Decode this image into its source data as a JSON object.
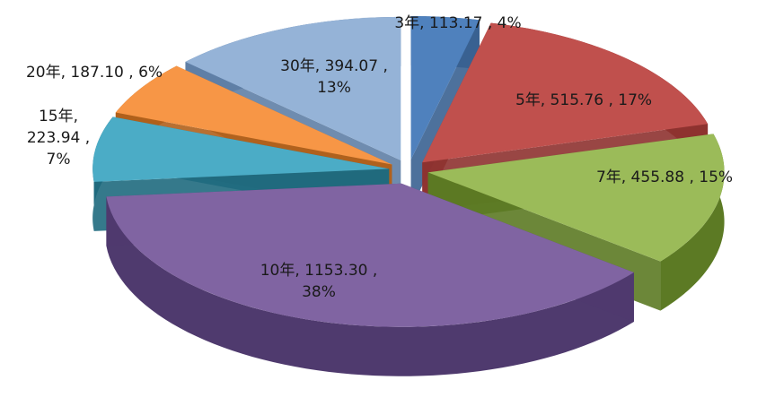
{
  "chart_data": {
    "type": "pie",
    "style": "3d-exploded",
    "start_angle_deg": -90,
    "direction": "clockwise",
    "slices": [
      {
        "label": "3年",
        "value": 113.17,
        "percent": "4%",
        "color": "#4F81BD",
        "side": "#3A6291",
        "label_lines": [
          "3年, 113.17 , 4%"
        ]
      },
      {
        "label": "5年",
        "value": 515.76,
        "percent": "17%",
        "color": "#C0504D",
        "side": "#8E3230",
        "label_lines": [
          "5年, 515.76 , 17%"
        ]
      },
      {
        "label": "7年",
        "value": 455.88,
        "percent": "15%",
        "color": "#9BBB59",
        "side": "#5C7A24",
        "label_lines": [
          "7年, 455.88 , 15%"
        ]
      },
      {
        "label": "10年",
        "value": 1153.3,
        "percent": "38%",
        "color": "#8064A2",
        "side": "#4F3A6E",
        "label_lines": [
          "10年, 1153.30 ,",
          "38%"
        ]
      },
      {
        "label": "15年",
        "value": 223.94,
        "percent": "7%",
        "color": "#4BACC6",
        "side": "#1F6A7E",
        "label_lines": [
          "15年,",
          "223.94 ,",
          "7%"
        ]
      },
      {
        "label": "20年",
        "value": 187.1,
        "percent": "6%",
        "color": "#F79646",
        "side": "#B0601C",
        "label_lines": [
          "20年, 187.10 , 6%"
        ]
      },
      {
        "label": "30年",
        "value": 394.07,
        "percent": "13%",
        "color": "#95B3D7",
        "side": "#5F7FA6",
        "label_lines": [
          "30年, 394.07 ,",
          "13%"
        ]
      }
    ]
  }
}
